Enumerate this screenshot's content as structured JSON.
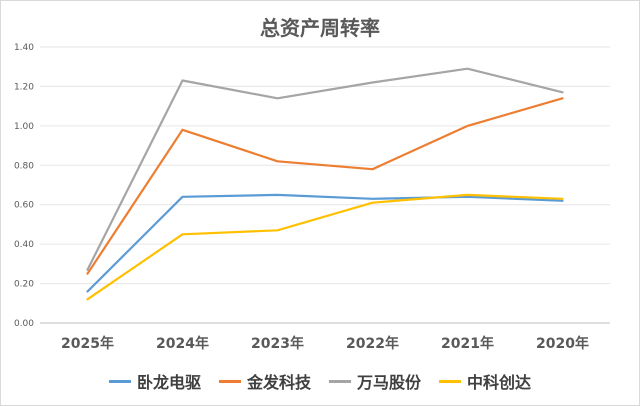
{
  "chart_data": {
    "type": "line",
    "title": "总资产周转率",
    "categories": [
      "2025年",
      "2024年",
      "2023年",
      "2022年",
      "2021年",
      "2020年"
    ],
    "ylim": [
      0,
      1.4
    ],
    "yticks": [
      "0.00",
      "0.20",
      "0.40",
      "0.60",
      "0.80",
      "1.00",
      "1.20",
      "1.40"
    ],
    "grid": true,
    "legend_position": "bottom",
    "series": [
      {
        "name": "卧龙电驱",
        "color": "#5b9bd5",
        "values": [
          0.16,
          0.64,
          0.65,
          0.63,
          0.64,
          0.62
        ]
      },
      {
        "name": "金发科技",
        "color": "#ed7d31",
        "values": [
          0.25,
          0.98,
          0.82,
          0.78,
          1.0,
          1.14
        ]
      },
      {
        "name": "万马股份",
        "color": "#a5a5a5",
        "values": [
          0.27,
          1.23,
          1.14,
          1.22,
          1.29,
          1.17
        ]
      },
      {
        "name": "中科创达",
        "color": "#ffc000",
        "values": [
          0.12,
          0.45,
          0.47,
          0.61,
          0.65,
          0.63
        ]
      }
    ]
  }
}
